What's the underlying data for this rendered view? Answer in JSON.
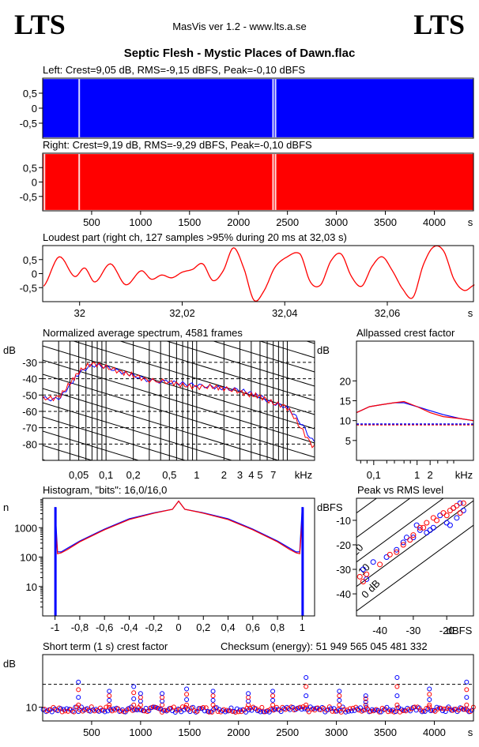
{
  "header": {
    "logo_left": "LTS",
    "logo_right": "LTS",
    "version": "MasVis ver 1.2 - www.lts.a.se",
    "file": "Septic Flesh - Mystic Places of Dawn.flac"
  },
  "colors": {
    "left": "#0000ff",
    "right": "#ff0000",
    "line": "#000000"
  },
  "chart_data": [
    {
      "id": "left",
      "type": "area",
      "title": "Left: Crest=9,05 dB, RMS=-9,15 dBFS, Peak=-0,10 dBFS",
      "ylim": [
        -1,
        1
      ],
      "ytick_labels": [
        "0,5",
        "0",
        "-0,5"
      ],
      "ytick_values": [
        0.5,
        0,
        -0.5
      ],
      "xlim": [
        0,
        4400
      ],
      "gaps_s": [
        365,
        2345,
        2370
      ]
    },
    {
      "id": "right",
      "type": "area",
      "title": "Right: Crest=9,19 dB, RMS=-9,29 dBFS, Peak=-0,10 dBFS",
      "ylim": [
        -1,
        1
      ],
      "ytick_labels": [
        "0,5",
        "0",
        "-0,5"
      ],
      "ytick_values": [
        0.5,
        0,
        -0.5
      ],
      "xlim": [
        0,
        4400
      ],
      "gaps_s": [
        10,
        365,
        2345,
        2370
      ],
      "xtick_labels": [
        "500",
        "1000",
        "1500",
        "2000",
        "2500",
        "3000",
        "3500",
        "4000",
        "s"
      ],
      "xtick_values": [
        500,
        1000,
        1500,
        2000,
        2500,
        3000,
        3500,
        4000
      ]
    },
    {
      "id": "loudest",
      "type": "line",
      "title": "Loudest part (right ch, 127 samples >95% during 20 ms at 32,03 s)",
      "xlim": [
        31.9928,
        32.0768
      ],
      "ylim": [
        -1,
        1
      ],
      "ytick_labels": [
        "0,5",
        "0",
        "-0,5"
      ],
      "ytick_values": [
        0.5,
        0,
        -0.5
      ],
      "xtick_labels": [
        "32",
        "32,02",
        "32,04",
        "32,06",
        "s"
      ],
      "xtick_values": [
        32.0,
        32.02,
        32.04,
        32.06
      ],
      "series": [
        {
          "x": [
            31.993,
            31.996,
            31.999,
            32.001,
            32.003,
            32.006,
            32.009,
            32.012,
            32.014,
            32.016,
            32.018,
            32.02,
            32.022,
            32.024,
            32.026,
            32.028,
            32.03,
            32.032,
            32.034,
            32.036,
            32.038,
            32.04,
            32.043,
            32.045,
            32.047,
            32.049,
            32.051,
            32.053,
            32.055,
            32.057,
            32.059,
            32.061,
            32.063,
            32.065,
            32.067,
            32.069,
            32.071,
            32.073,
            32.075,
            32.077
          ],
          "y": [
            -0.45,
            0.6,
            -0.1,
            0.2,
            -0.3,
            0.35,
            -0.4,
            0.1,
            -0.2,
            -0.05,
            -0.15,
            0.05,
            0.15,
            0.35,
            -0.25,
            0.1,
            0.92,
            0.2,
            -0.95,
            -0.6,
            0.2,
            0.55,
            0.7,
            -0.3,
            -0.4,
            0.45,
            0.7,
            -0.1,
            -0.45,
            0.25,
            0.6,
            0.1,
            -0.55,
            -0.85,
            0.3,
            0.95,
            0.8,
            -0.2,
            -0.6,
            -0.4
          ]
        }
      ]
    },
    {
      "id": "spectrum",
      "type": "line",
      "title": "Normalized average spectrum, 4581 frames",
      "ylabel": "dB",
      "ytick_labels": [
        "-30",
        "-40",
        "-50",
        "-60",
        "-70",
        "-80"
      ],
      "ytick_values": [
        -30,
        -40,
        -50,
        -60,
        -70,
        -80
      ],
      "ylim": [
        -90,
        -17
      ],
      "xscale": "log",
      "xunit": "kHz",
      "xlim": [
        0.02,
        20
      ],
      "xtick_labels": [
        "0,05",
        "0,1",
        "0,2",
        "0,5",
        "1",
        "2",
        "3",
        "4",
        "5",
        "7",
        "kHz"
      ],
      "xtick_values": [
        0.05,
        0.1,
        0.2,
        0.5,
        1,
        2,
        3,
        4,
        5,
        7
      ],
      "series": [
        {
          "name": "left",
          "x": [
            0.02,
            0.03,
            0.04,
            0.05,
            0.07,
            0.1,
            0.15,
            0.2,
            0.3,
            0.5,
            0.7,
            1,
            1.5,
            2,
            3,
            4,
            5,
            7,
            10,
            14,
            20
          ],
          "y": [
            -52,
            -52,
            -44,
            -37,
            -32,
            -33,
            -36,
            -38,
            -41,
            -42,
            -43,
            -44,
            -45,
            -46,
            -47,
            -49,
            -51,
            -55,
            -58,
            -67,
            -79
          ]
        },
        {
          "name": "right",
          "x": [
            0.02,
            0.03,
            0.04,
            0.05,
            0.07,
            0.1,
            0.15,
            0.2,
            0.3,
            0.5,
            0.7,
            1,
            1.5,
            2,
            3,
            4,
            5,
            7,
            10,
            14,
            20
          ],
          "y": [
            -52,
            -51,
            -43,
            -36,
            -31,
            -33,
            -36,
            -38,
            -41,
            -42,
            -44,
            -45,
            -45,
            -46,
            -48,
            -50,
            -51,
            -55,
            -58,
            -70,
            -82
          ]
        }
      ]
    },
    {
      "id": "allpass",
      "type": "line",
      "title": "Allpassed crest factor",
      "ylabel": "dB",
      "ytick_labels": [
        "20",
        "15",
        "10",
        "5"
      ],
      "ytick_values": [
        20,
        15,
        10,
        5
      ],
      "ylim": [
        0,
        30
      ],
      "xscale": "log",
      "xlim": [
        0.04,
        20
      ],
      "xtick_labels": [
        "0,1",
        "1",
        "2",
        "kHz"
      ],
      "xtick_values": [
        0.1,
        1,
        2
      ],
      "reference_db": 9.1,
      "series": [
        {
          "name": "left",
          "x": [
            0.04,
            0.08,
            0.15,
            0.3,
            0.5,
            1,
            2,
            4,
            10,
            20
          ],
          "y": [
            12,
            13.5,
            14,
            14.5,
            14.5,
            13.5,
            12.5,
            11.5,
            10.5,
            10
          ]
        },
        {
          "name": "right",
          "x": [
            0.04,
            0.08,
            0.15,
            0.3,
            0.5,
            1,
            2,
            4,
            10,
            20
          ],
          "y": [
            12,
            13.5,
            14,
            14.5,
            14.8,
            13.5,
            12,
            11,
            10.5,
            10
          ]
        }
      ]
    },
    {
      "id": "histogram",
      "type": "line",
      "title": "Histogram, \"bits\": 16,0/16,0",
      "ylabel": "n",
      "yscale": "log",
      "ytick_labels": [
        "1000",
        "100",
        "10"
      ],
      "ytick_values": [
        1000,
        100,
        10
      ],
      "ylim": [
        1,
        10000
      ],
      "xlim": [
        -1.1,
        1.1
      ],
      "xtick_labels": [
        "-1",
        "-0,8",
        "-0,6",
        "-0,4",
        "-0,2",
        "0",
        "0,2",
        "0,4",
        "0,6",
        "0,8",
        "1"
      ],
      "xtick_values": [
        -1,
        -0.8,
        -0.6,
        -0.4,
        -0.2,
        0,
        0.2,
        0.4,
        0.6,
        0.8,
        1
      ],
      "series": [
        {
          "name": "left",
          "x": [
            -1,
            -0.98,
            -0.95,
            -0.9,
            -0.8,
            -0.6,
            -0.4,
            -0.2,
            -0.05,
            0,
            0.05,
            0.2,
            0.4,
            0.6,
            0.8,
            0.9,
            0.95,
            0.98,
            1
          ],
          "y": [
            5000,
            150,
            150,
            200,
            350,
            900,
            2000,
            3200,
            4200,
            8000,
            4200,
            3200,
            2000,
            900,
            350,
            200,
            150,
            150,
            5000
          ]
        },
        {
          "name": "right",
          "x": [
            -1,
            -0.98,
            -0.95,
            -0.9,
            -0.8,
            -0.6,
            -0.4,
            -0.2,
            -0.05,
            0,
            0.05,
            0.2,
            0.4,
            0.6,
            0.8,
            0.9,
            0.95,
            0.98,
            1
          ],
          "y": [
            2000,
            130,
            140,
            180,
            330,
            850,
            1900,
            3100,
            4200,
            8000,
            4200,
            3100,
            1900,
            850,
            330,
            180,
            140,
            130,
            2000
          ]
        }
      ]
    },
    {
      "id": "peak_rms",
      "type": "scatter",
      "title": "Peak vs RMS level",
      "ylabel": "dBFS",
      "xlabel": "dBFS",
      "ytick_labels": [
        "-10",
        "-20",
        "-30",
        "-40"
      ],
      "ytick_values": [
        -10,
        -20,
        -30,
        -40
      ],
      "xtick_labels": [
        "-40",
        "-30",
        "-20"
      ],
      "xtick_values": [
        -40,
        -30,
        -20
      ],
      "xlim": [
        -47,
        -12
      ],
      "ylim": [
        -49,
        -1
      ],
      "diagonal_labels": [
        "40",
        "30",
        "20",
        "10",
        "0 dB"
      ],
      "series": [
        {
          "name": "left",
          "x": [
            -45,
            -44,
            -42,
            -38,
            -35,
            -33,
            -32,
            -30,
            -29,
            -28,
            -26,
            -25,
            -24,
            -22,
            -20,
            -19,
            -18,
            -17,
            -16,
            -15
          ],
          "y": [
            -30,
            -34,
            -27,
            -25,
            -22,
            -19,
            -17,
            -17,
            -12,
            -14,
            -15,
            -14,
            -13,
            -8,
            -11,
            -12,
            -5,
            -9,
            -3,
            -6
          ]
        },
        {
          "name": "right",
          "x": [
            -46,
            -45,
            -44,
            -40,
            -37,
            -35,
            -33,
            -31,
            -30,
            -28,
            -27,
            -26,
            -24,
            -23,
            -21,
            -20,
            -19,
            -18,
            -17,
            -16,
            -15
          ],
          "y": [
            -33,
            -35,
            -32,
            -28,
            -24,
            -23,
            -20,
            -18,
            -16,
            -13,
            -13,
            -11,
            -9,
            -10,
            -7,
            -8,
            -6,
            -5,
            -4,
            -7,
            -3
          ]
        }
      ]
    },
    {
      "id": "short_term",
      "type": "scatter",
      "title": "Short term (1 s) crest factor",
      "checksum": "Checksum (energy):  51 949 565 045 481 332",
      "ylabel": "dB",
      "ytick_labels": [
        "10"
      ],
      "ytick_values": [
        10
      ],
      "ylim": [
        4,
        33
      ],
      "xlim": [
        0,
        4400
      ],
      "reference_db": 20,
      "xtick_labels": [
        "500",
        "1000",
        "1500",
        "2000",
        "2500",
        "3000",
        "3500",
        "4000",
        "s"
      ],
      "xtick_values": [
        500,
        1000,
        1500,
        2000,
        2500,
        3000,
        3500,
        4000
      ],
      "spikes": [
        {
          "x": 365,
          "y": 21
        },
        {
          "x": 680,
          "y": 17
        },
        {
          "x": 930,
          "y": 19
        },
        {
          "x": 1000,
          "y": 16
        },
        {
          "x": 1220,
          "y": 16
        },
        {
          "x": 1470,
          "y": 18
        },
        {
          "x": 1740,
          "y": 17
        },
        {
          "x": 2100,
          "y": 16
        },
        {
          "x": 2350,
          "y": 17
        },
        {
          "x": 2690,
          "y": 23
        },
        {
          "x": 3030,
          "y": 17
        },
        {
          "x": 3300,
          "y": 15
        },
        {
          "x": 3620,
          "y": 23
        },
        {
          "x": 3950,
          "y": 18
        },
        {
          "x": 4330,
          "y": 21
        }
      ]
    }
  ]
}
